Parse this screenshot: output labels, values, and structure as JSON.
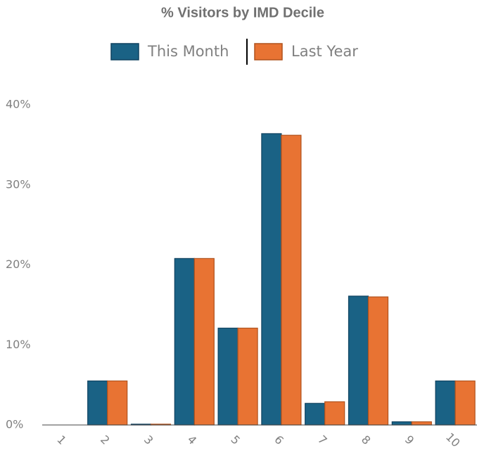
{
  "chart_data": {
    "type": "bar",
    "title": "% Visitors by IMD Decile",
    "categories": [
      "1",
      "2",
      "3",
      "4",
      "5",
      "6",
      "7",
      "8",
      "9",
      "10"
    ],
    "series": [
      {
        "name": "This Month",
        "color": "#1a6285",
        "values": [
          0,
          5.5,
          0.1,
          20.8,
          12.1,
          36.4,
          2.7,
          16.1,
          0.4,
          5.5
        ]
      },
      {
        "name": "Last Year",
        "color": "#e87333",
        "values": [
          0,
          5.5,
          0.1,
          20.8,
          12.1,
          36.2,
          2.9,
          16.0,
          0.4,
          5.5
        ]
      }
    ],
    "ylim": [
      0,
      40
    ],
    "yticks": [
      {
        "value": 0,
        "label": "0%"
      },
      {
        "value": 10,
        "label": "10%"
      },
      {
        "value": 20,
        "label": "20%"
      },
      {
        "value": 30,
        "label": "30%"
      },
      {
        "value": 40,
        "label": "40%"
      }
    ],
    "grid": false
  }
}
